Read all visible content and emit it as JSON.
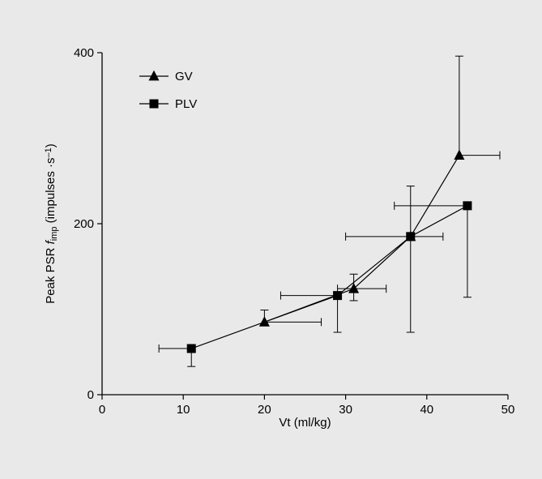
{
  "chart_data": {
    "type": "scatter",
    "title": "",
    "xlabel": "Vt (ml/kg)",
    "ylabel": {
      "prefix": "Peak PSR ",
      "italic": "f",
      "subscript": "imp",
      "middle": " (impulses ·s",
      "superscript": "–1",
      "suffix": ")"
    },
    "xlim": [
      0,
      50
    ],
    "ylim": [
      0,
      400
    ],
    "x_ticks": [
      "0",
      "10",
      "20",
      "30",
      "40",
      "50"
    ],
    "y_ticks": [
      "0",
      "200",
      "400"
    ],
    "legend_position": "top-left",
    "grid": false,
    "series": [
      {
        "name": "GV",
        "marker": "triangle",
        "points": [
          {
            "x": 20,
            "y": 85,
            "x_err": [
              20,
              27
            ],
            "y_err": [
              85,
              99
            ]
          },
          {
            "x": 31,
            "y": 124,
            "x_err": [
              29,
              35
            ],
            "y_err": [
              110,
              141
            ]
          },
          {
            "x": 38,
            "y": 185,
            "x_err": [
              30,
              42
            ],
            "y_err": [
              185,
              185
            ]
          },
          {
            "x": 44,
            "y": 280,
            "x_err": [
              44,
              49
            ],
            "y_err": [
              280,
              396
            ]
          }
        ]
      },
      {
        "name": "PLV",
        "marker": "square",
        "points": [
          {
            "x": 11,
            "y": 54,
            "x_err": [
              7,
              11
            ],
            "y_err": [
              33,
              54
            ]
          },
          {
            "x": 29,
            "y": 116,
            "x_err": [
              22,
              29
            ],
            "y_err": [
              73,
              116
            ]
          },
          {
            "x": 38,
            "y": 185,
            "x_err": [
              38,
              38
            ],
            "y_err": [
              73,
              244
            ]
          },
          {
            "x": 45,
            "y": 221,
            "x_err": [
              36,
              45
            ],
            "y_err": [
              114,
              221
            ]
          }
        ]
      }
    ]
  }
}
